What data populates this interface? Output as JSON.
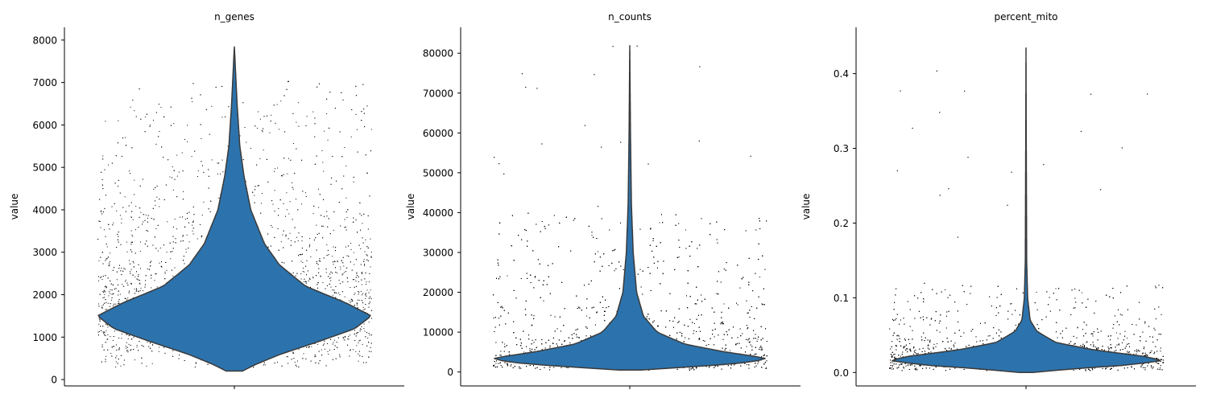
{
  "chart_data": [
    {
      "type": "violin",
      "title": "n_genes",
      "ylabel": "value",
      "ylim": [
        -150,
        8300
      ],
      "yticks": [
        0,
        1000,
        2000,
        3000,
        4000,
        5000,
        6000,
        7000,
        8000
      ],
      "ytick_labels": [
        "0",
        "1000",
        "2000",
        "3000",
        "4000",
        "5000",
        "6000",
        "7000",
        "8000"
      ],
      "distribution": {
        "min": 200,
        "max": 7850,
        "bulk_low": 300,
        "bulk_high": 6600,
        "points_max": 7100,
        "density_profile": [
          [
            200,
            0.06
          ],
          [
            350,
            0.15
          ],
          [
            600,
            0.34
          ],
          [
            900,
            0.62
          ],
          [
            1200,
            0.88
          ],
          [
            1500,
            1.0
          ],
          [
            1800,
            0.82
          ],
          [
            2200,
            0.52
          ],
          [
            2700,
            0.33
          ],
          [
            3200,
            0.22
          ],
          [
            4000,
            0.12
          ],
          [
            4800,
            0.07
          ],
          [
            5500,
            0.04
          ],
          [
            6500,
            0.02
          ],
          [
            7850,
            0.0
          ]
        ]
      },
      "fill_color": "#2c73ad",
      "edge_color": "#3a3a3a",
      "point_color": "#000000"
    },
    {
      "type": "violin",
      "title": "n_counts",
      "ylabel": "value",
      "ylim": [
        -3500,
        86500
      ],
      "yticks": [
        0,
        10000,
        20000,
        30000,
        40000,
        50000,
        60000,
        70000,
        80000
      ],
      "ytick_labels": [
        "0",
        "10000",
        "20000",
        "30000",
        "40000",
        "50000",
        "60000",
        "70000",
        "80000"
      ],
      "distribution": {
        "min": 500,
        "max": 82000,
        "bulk_low": 600,
        "bulk_high": 40000,
        "points_max": 82000,
        "density_profile": [
          [
            500,
            0.08
          ],
          [
            1500,
            0.55
          ],
          [
            2500,
            0.9
          ],
          [
            3500,
            1.0
          ],
          [
            5000,
            0.7
          ],
          [
            7000,
            0.4
          ],
          [
            10000,
            0.2
          ],
          [
            14000,
            0.1
          ],
          [
            20000,
            0.05
          ],
          [
            30000,
            0.025
          ],
          [
            42000,
            0.012
          ],
          [
            60000,
            0.005
          ],
          [
            82000,
            0.0
          ]
        ]
      },
      "fill_color": "#2c73ad",
      "edge_color": "#3a3a3a",
      "point_color": "#000000"
    },
    {
      "type": "violin",
      "title": "percent_mito",
      "ylabel": "value",
      "ylim": [
        -0.018,
        0.462
      ],
      "yticks": [
        0.0,
        0.1,
        0.2,
        0.3,
        0.4
      ],
      "ytick_labels": [
        "0.0",
        "0.1",
        "0.2",
        "0.3",
        "0.4"
      ],
      "distribution": {
        "min": 0.0,
        "max": 0.435,
        "bulk_low": 0.003,
        "bulk_high": 0.12,
        "points_max": 0.43,
        "density_profile": [
          [
            0.0,
            0.05
          ],
          [
            0.005,
            0.35
          ],
          [
            0.01,
            0.75
          ],
          [
            0.016,
            1.0
          ],
          [
            0.022,
            0.85
          ],
          [
            0.03,
            0.5
          ],
          [
            0.04,
            0.22
          ],
          [
            0.055,
            0.08
          ],
          [
            0.07,
            0.03
          ],
          [
            0.1,
            0.012
          ],
          [
            0.15,
            0.005
          ],
          [
            0.3,
            0.002
          ],
          [
            0.435,
            0.0
          ]
        ]
      },
      "fill_color": "#2c73ad",
      "edge_color": "#3a3a3a",
      "point_color": "#000000"
    }
  ]
}
